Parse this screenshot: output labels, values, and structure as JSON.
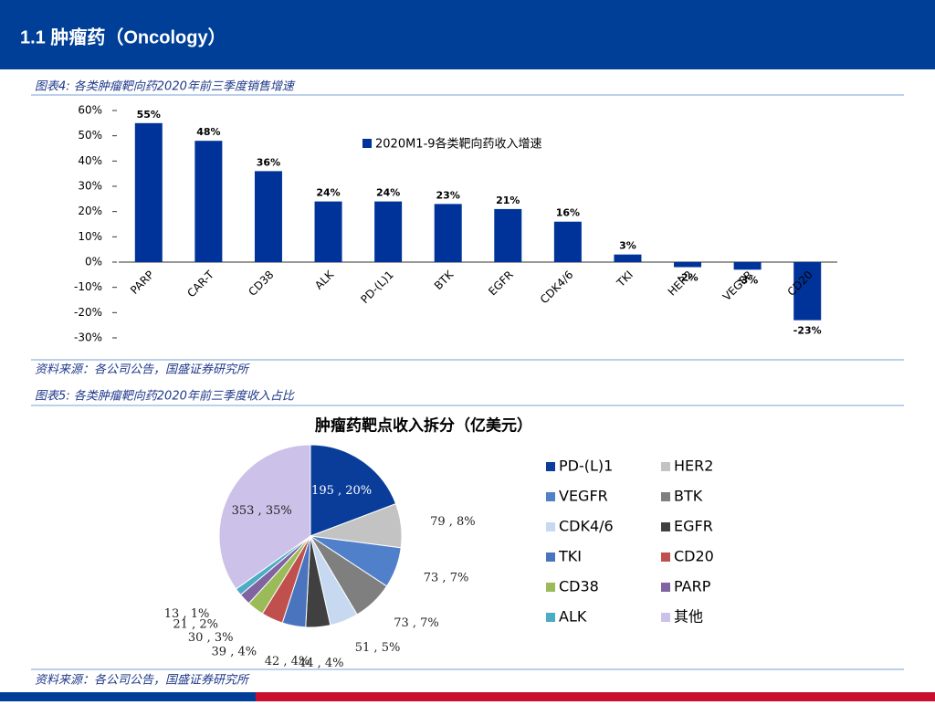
{
  "header": {
    "title": "1.1 肿瘤药（Oncology）"
  },
  "figures": [
    {
      "caption": "图表4:  各类肿瘤靶向药2020年前三季度销售增速",
      "source": "资料来源：各公司公告，国盛证券研究所"
    },
    {
      "caption": "图表5:  各类肿瘤靶向药2020年前三季度收入占比",
      "source": "资料来源：各公司公告，国盛证券研究所"
    }
  ],
  "chart_data": [
    {
      "type": "bar",
      "categories": [
        "PARP",
        "CAR-T",
        "CD38",
        "ALK",
        "PD-(L)1",
        "BTK",
        "EGFR",
        "CDK4/6",
        "TKI",
        "HER2",
        "VEGFR",
        "CD20"
      ],
      "series": [
        {
          "name": "2020M1-9各类靶向药收入增速",
          "color": "#003399",
          "values": [
            55,
            48,
            36,
            24,
            24,
            23,
            21,
            16,
            3,
            -2,
            -3,
            -23
          ],
          "value_labels": [
            "55%",
            "48%",
            "36%",
            "24%",
            "24%",
            "23%",
            "21%",
            "16%",
            "3%",
            "-2%",
            "-3%",
            "-23%"
          ]
        }
      ],
      "ylim": [
        -30,
        60
      ],
      "yticks": [
        {
          "value": -30,
          "label": "-30%"
        },
        {
          "value": -20,
          "label": "-20%"
        },
        {
          "value": -10,
          "label": "-10%"
        },
        {
          "value": 0,
          "label": "0%"
        },
        {
          "value": 10,
          "label": "10%"
        },
        {
          "value": 20,
          "label": "20%"
        },
        {
          "value": 30,
          "label": "30%"
        },
        {
          "value": 40,
          "label": "40%"
        },
        {
          "value": 50,
          "label": "50%"
        },
        {
          "value": 60,
          "label": "60%"
        }
      ],
      "legend": "top-right"
    },
    {
      "type": "pie",
      "title": "肿瘤药靶点收入拆分（亿美元）",
      "categories": [
        "PD-(L)1",
        "HER2",
        "VEGFR",
        "BTK",
        "CDK4/6",
        "EGFR",
        "TKI",
        "CD20",
        "CD38",
        "PARP",
        "ALK",
        "其他"
      ],
      "values": [
        195,
        79,
        73,
        73,
        51,
        44,
        42,
        39,
        30,
        21,
        13,
        353
      ],
      "value_labels": [
        "195 , 20%",
        "79 , 8%",
        "73 , 7%",
        "73 , 7%",
        "51 , 5%",
        "44 , 4%",
        "42 , 4%",
        "39 , 4%",
        "30 , 3%",
        "21 , 2%",
        "13 , 1%",
        "353 , 35%"
      ],
      "colors": [
        "#0a3d9a",
        "#c3c3c3",
        "#4f80c9",
        "#7f7f7f",
        "#c6d9f1",
        "#404040",
        "#4a74bd",
        "#c0504d",
        "#9bbb59",
        "#8064a2",
        "#4bacc6",
        "#ccc1e8"
      ],
      "legend": "right"
    }
  ]
}
